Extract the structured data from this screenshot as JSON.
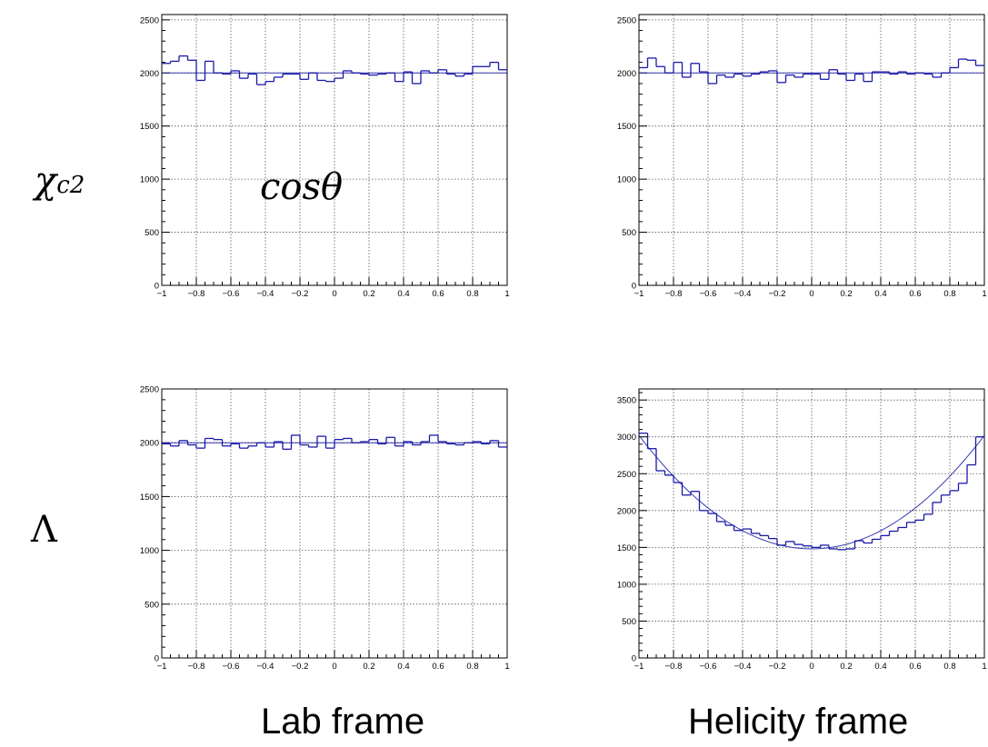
{
  "row_labels": {
    "chi_base": "χ",
    "chi_sub": "c2",
    "lambda": "Λ"
  },
  "overlay_label": "cosθ",
  "column_labels": {
    "left": "Lab frame",
    "right": "Helicity frame"
  },
  "colors": {
    "histogram_line": "#1a1aa8",
    "fit_line": "#1a1aa8",
    "frame": "#000000",
    "grid": "#555555"
  },
  "chart_data": [
    {
      "type": "histogram",
      "panel": "chi_c2-lab",
      "title": "",
      "xlabel": "",
      "ylabel": "",
      "xlim": [
        -1,
        1
      ],
      "ylim": [
        0,
        2550
      ],
      "x_ticks": [
        -1,
        -0.8,
        -0.6,
        -0.4,
        -0.2,
        0,
        0.2,
        0.4,
        0.6,
        0.8,
        1
      ],
      "x_tick_labels": [
        "−1",
        "−0.8",
        "−0.6",
        "−0.4",
        "−0.2",
        "0",
        "0.2",
        "0.4",
        "0.6",
        "0.8",
        "1"
      ],
      "y_ticks": [
        0,
        500,
        1000,
        1500,
        2000,
        2500
      ],
      "y_tick_labels": [
        "0",
        "500",
        "1000",
        "1500",
        "2000",
        "2500"
      ],
      "grid": true,
      "bin_edges_range": [
        -1,
        1
      ],
      "n_bins": 40,
      "values": [
        2090,
        2110,
        2160,
        2120,
        1930,
        2110,
        2000,
        1990,
        2020,
        1950,
        1990,
        1890,
        1920,
        1960,
        1990,
        1990,
        1940,
        2000,
        1930,
        1920,
        1950,
        2020,
        2000,
        1990,
        1980,
        1990,
        2000,
        1920,
        2010,
        1900,
        2020,
        2000,
        2030,
        1990,
        1970,
        1990,
        2060,
        2060,
        2100,
        2030
      ],
      "fit": {
        "type": "flat",
        "values": [
          2000,
          2000
        ]
      }
    },
    {
      "type": "histogram",
      "panel": "chi_c2-helicity",
      "title": "",
      "xlabel": "",
      "ylabel": "",
      "xlim": [
        -1,
        1
      ],
      "ylim": [
        0,
        2550
      ],
      "x_ticks": [
        -1,
        -0.8,
        -0.6,
        -0.4,
        -0.2,
        0,
        0.2,
        0.4,
        0.6,
        0.8,
        1
      ],
      "x_tick_labels": [
        "−1",
        "−0.8",
        "−0.6",
        "−0.4",
        "−0.2",
        "0",
        "0.2",
        "0.4",
        "0.6",
        "0.8",
        "1"
      ],
      "y_ticks": [
        0,
        500,
        1000,
        1500,
        2000,
        2500
      ],
      "y_tick_labels": [
        "0",
        "500",
        "1000",
        "1500",
        "2000",
        "2500"
      ],
      "grid": true,
      "bin_edges_range": [
        -1,
        1
      ],
      "n_bins": 40,
      "values": [
        2050,
        2140,
        2060,
        2000,
        2100,
        1960,
        2090,
        2010,
        1900,
        1980,
        1960,
        1990,
        1970,
        1990,
        2010,
        2020,
        1910,
        1980,
        1960,
        1990,
        1990,
        1940,
        2030,
        1990,
        1930,
        1990,
        1920,
        2010,
        2010,
        1990,
        2010,
        1990,
        2000,
        1990,
        1960,
        2000,
        2050,
        2130,
        2120,
        2070
      ],
      "fit": {
        "type": "flat",
        "values": [
          2000,
          2000
        ]
      }
    },
    {
      "type": "histogram",
      "panel": "lambda-lab",
      "title": "",
      "xlabel": "",
      "ylabel": "",
      "xlim": [
        -1,
        1
      ],
      "ylim": [
        0,
        2500
      ],
      "x_ticks": [
        -1,
        -0.8,
        -0.6,
        -0.4,
        -0.2,
        0,
        0.2,
        0.4,
        0.6,
        0.8,
        1
      ],
      "x_tick_labels": [
        "−1",
        "−0.8",
        "−0.6",
        "−0.4",
        "−0.2",
        "0",
        "0.2",
        "0.4",
        "0.6",
        "0.8",
        "1"
      ],
      "y_ticks": [
        0,
        500,
        1000,
        1500,
        2000,
        2500
      ],
      "y_tick_labels": [
        "0",
        "500",
        "1000",
        "1500",
        "2000",
        "2500"
      ],
      "grid": true,
      "bin_edges_range": [
        -1,
        1
      ],
      "n_bins": 40,
      "values": [
        1990,
        1970,
        2020,
        1980,
        1950,
        2040,
        2030,
        1970,
        1990,
        1950,
        1970,
        2000,
        1960,
        2010,
        1940,
        2070,
        1980,
        1960,
        2060,
        1950,
        2030,
        2040,
        2000,
        2010,
        2030,
        1990,
        2050,
        1970,
        2010,
        1980,
        2010,
        2070,
        2010,
        1990,
        1980,
        2000,
        2010,
        1990,
        2020,
        1960
      ],
      "fit": {
        "type": "flat",
        "values": [
          2000,
          2000
        ]
      }
    },
    {
      "type": "histogram",
      "panel": "lambda-helicity",
      "title": "",
      "xlabel": "",
      "ylabel": "",
      "xlim": [
        -1,
        1
      ],
      "ylim": [
        0,
        3650
      ],
      "x_ticks": [
        -1,
        -0.8,
        -0.6,
        -0.4,
        -0.2,
        0,
        0.2,
        0.4,
        0.6,
        0.8,
        1
      ],
      "x_tick_labels": [
        "−1",
        "−0.8",
        "−0.6",
        "−0.4",
        "−0.2",
        "0",
        "0.2",
        "0.4",
        "0.6",
        "0.8",
        "1"
      ],
      "y_ticks": [
        0,
        500,
        1000,
        1500,
        2000,
        2500,
        3000,
        3500
      ],
      "y_tick_labels": [
        "0",
        "500",
        "1000",
        "1500",
        "2000",
        "2500",
        "3000",
        "3500"
      ],
      "grid": true,
      "bin_edges_range": [
        -1,
        1
      ],
      "n_bins": 40,
      "values": [
        3050,
        2840,
        2540,
        2480,
        2380,
        2210,
        2260,
        2000,
        1960,
        1850,
        1800,
        1730,
        1750,
        1690,
        1660,
        1620,
        1530,
        1580,
        1540,
        1520,
        1500,
        1530,
        1480,
        1470,
        1480,
        1590,
        1560,
        1610,
        1660,
        1720,
        1770,
        1840,
        1870,
        1950,
        2110,
        2210,
        2270,
        2370,
        2620,
        3000
      ],
      "fit": {
        "type": "parabola",
        "a": 1480,
        "b": 1540
      }
    }
  ]
}
